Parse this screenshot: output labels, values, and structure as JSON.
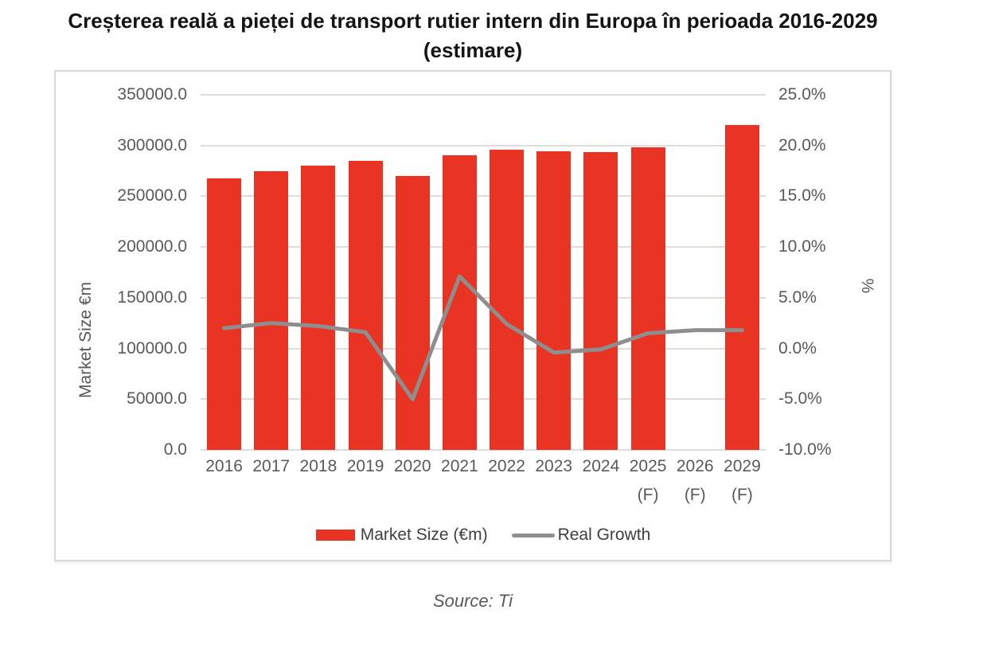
{
  "title": {
    "line1": "Creșterea reală a pieței de transport rutier intern din Europa în perioada 2016-2029",
    "line2": "(estimare)"
  },
  "source": "Source: Ti",
  "chart_data": {
    "type": "bar",
    "subtype": "combo-bar-line-dual-axis",
    "title": "Creșterea reală a pieței de transport rutier intern din Europa în perioada 2016-2029 (estimare)",
    "categories": [
      "2016",
      "2017",
      "2018",
      "2019",
      "2020",
      "2021",
      "2022",
      "2023",
      "2024",
      "2025",
      "2026",
      "2029"
    ],
    "category_suffixes": [
      "",
      "",
      "",
      "",
      "",
      "",
      "",
      "",
      "",
      "(F)",
      "(F)",
      "(F)"
    ],
    "series": [
      {
        "name": "Market Size (€m)",
        "type": "bar",
        "axis": "left",
        "color": "#e93423",
        "values": [
          268000,
          275000,
          280000,
          284500,
          270000,
          290000,
          295500,
          294000,
          293500,
          298500,
          null,
          320000
        ]
      },
      {
        "name": "Real Growth",
        "type": "line",
        "axis": "right",
        "color": "#8e8e8e",
        "values": [
          2.0,
          2.5,
          2.2,
          1.6,
          -5.0,
          7.1,
          2.4,
          -0.4,
          -0.1,
          1.5,
          1.8,
          1.8
        ]
      }
    ],
    "left_axis": {
      "label": "Market Size €m",
      "min": 0,
      "max": 350000,
      "step": 50000,
      "ticks": [
        "350000.0",
        "300000.0",
        "250000.0",
        "200000.0",
        "150000.0",
        "100000.0",
        "50000.0",
        "0.0"
      ]
    },
    "right_axis": {
      "label": "%",
      "min": -10,
      "max": 25,
      "step": 5,
      "ticks": [
        "25.0%",
        "20.0%",
        "15.0%",
        "10.0%",
        "5.0%",
        "0.0%",
        "-5.0%",
        "-10.0%"
      ]
    },
    "legend": [
      {
        "label": "Market Size (€m)",
        "marker": "bar",
        "color": "#e93423"
      },
      {
        "label": "Real Growth",
        "marker": "line",
        "color": "#8e8e8e"
      }
    ],
    "grid": true,
    "legend_position": "bottom"
  },
  "colors": {
    "bar_red": "#e93423",
    "line_gray": "#8e8e8e",
    "gridline": "#dcdcdc",
    "axis_text": "#595959",
    "legend_text": "#3f3f3f",
    "frame_border": "#d9d9d9"
  }
}
